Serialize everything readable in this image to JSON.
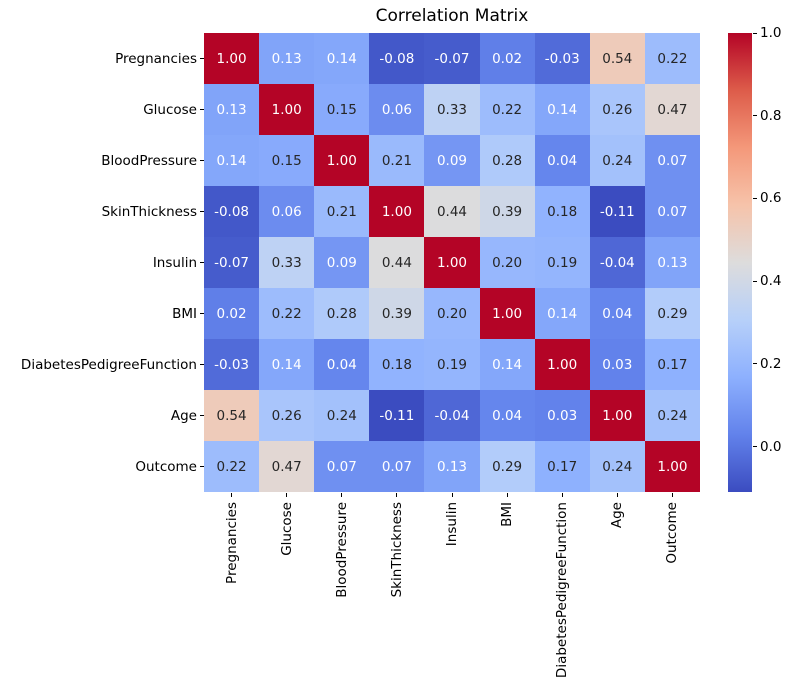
{
  "chart_data": {
    "type": "heatmap",
    "title": "Correlation Matrix",
    "labels": [
      "Pregnancies",
      "Glucose",
      "BloodPressure",
      "SkinThickness",
      "Insulin",
      "BMI",
      "DiabetesPedigreeFunction",
      "Age",
      "Outcome"
    ],
    "matrix": [
      [
        1.0,
        0.13,
        0.14,
        -0.08,
        -0.07,
        0.02,
        -0.03,
        0.54,
        0.22
      ],
      [
        0.13,
        1.0,
        0.15,
        0.06,
        0.33,
        0.22,
        0.14,
        0.26,
        0.47
      ],
      [
        0.14,
        0.15,
        1.0,
        0.21,
        0.09,
        0.28,
        0.04,
        0.24,
        0.07
      ],
      [
        -0.08,
        0.06,
        0.21,
        1.0,
        0.44,
        0.39,
        0.18,
        -0.11,
        0.07
      ],
      [
        -0.07,
        0.33,
        0.09,
        0.44,
        1.0,
        0.2,
        0.19,
        -0.04,
        0.13
      ],
      [
        0.02,
        0.22,
        0.28,
        0.39,
        0.2,
        1.0,
        0.14,
        0.04,
        0.29
      ],
      [
        -0.03,
        0.14,
        0.04,
        0.18,
        0.19,
        0.14,
        1.0,
        0.03,
        0.17
      ],
      [
        0.54,
        0.26,
        0.24,
        -0.11,
        -0.04,
        0.04,
        0.03,
        1.0,
        0.24
      ],
      [
        0.22,
        0.47,
        0.07,
        0.07,
        0.13,
        0.29,
        0.17,
        0.24,
        1.0
      ]
    ],
    "vmin": -0.11,
    "vmax": 1.0,
    "value_decimals": 2,
    "colormap": {
      "name": "coolwarm",
      "anchors": [
        "#3b4cc0",
        "#6282eb",
        "#8db0fe",
        "#b7d0f9",
        "#dddcdc",
        "#f6c3aa",
        "#f4987a",
        "#dd5c4a",
        "#b40426"
      ]
    },
    "annotation_colors": {
      "dark": "#262626",
      "light": "#ffffff"
    },
    "colorbar": {
      "position": "right",
      "tick_labels": [
        "1.0",
        "0.8",
        "0.6",
        "0.4",
        "0.2",
        "0.0"
      ],
      "tick_values": [
        1.0,
        0.8,
        0.6,
        0.4,
        0.2,
        0.0
      ]
    },
    "grid": false,
    "xlabel": "",
    "ylabel": ""
  }
}
